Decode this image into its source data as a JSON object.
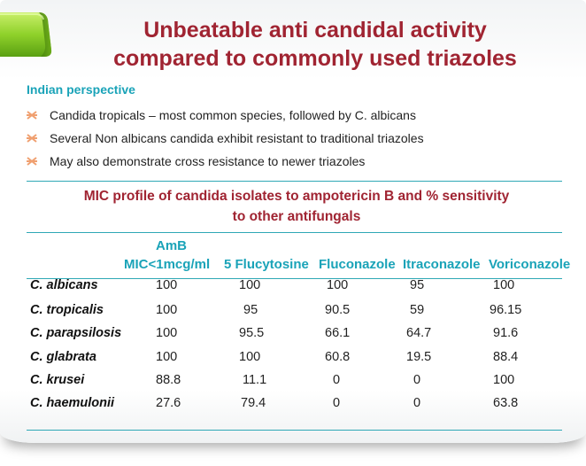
{
  "slide": {
    "title_line1": "Unbeatable anti candidal activity",
    "title_line2": "compared to commonly used triazoles",
    "subheading": "Indian perspective",
    "bullets": [
      "Candida tropicals – most common species, followed by C. albicans",
      "Several Non albicans candida exhibit resistant to traditional triazoles",
      "May also demonstrate cross resistance to newer triazoles"
    ],
    "table_title_line1": "MIC profile of candida isolates to ampotericin B and % sensitivity",
    "table_title_line2": "to other antifungals",
    "columns": {
      "amb_line1": "AmB",
      "amb_line2": "MIC<1mcg/ml",
      "flucytosine": "5 Flucytosine",
      "fluconazole": "Fluconazole",
      "itraconazole": "Itraconazole",
      "voriconazole": "Voriconazole"
    },
    "rows": [
      {
        "species": "C. albicans",
        "amb": "100",
        "flucytosine": "100",
        "fluconazole": "100",
        "itraconazole": "95",
        "voriconazole": "100"
      },
      {
        "species": "C. tropicalis",
        "amb": "100",
        "flucytosine": "95",
        "fluconazole": "90.5",
        "itraconazole": "59",
        "voriconazole": "96.15"
      },
      {
        "species": "C. parapsilosis",
        "amb": "100",
        "flucytosine": "95.5",
        "fluconazole": "66.1",
        "itraconazole": "64.7",
        "voriconazole": "91.6"
      },
      {
        "species": "C. glabrata",
        "amb": "100",
        "flucytosine": "100",
        "fluconazole": "60.8",
        "itraconazole": "19.5",
        "voriconazole": "88.4"
      },
      {
        "species": "C. krusei",
        "amb": "88.8",
        "flucytosine": "11.1",
        "fluconazole": "0",
        "itraconazole": "0",
        "voriconazole": "100"
      },
      {
        "species": "C. haemulonii",
        "amb": "27.6",
        "flucytosine": "79.4",
        "fluconazole": "0",
        "itraconazole": "0",
        "voriconazole": "63.8"
      }
    ]
  },
  "colors": {
    "title": "#a02432",
    "accent": "#1aa3b8",
    "rule": "#2fa8b5",
    "tab_green": "#7cc31d",
    "bullet": "#f0a070"
  }
}
